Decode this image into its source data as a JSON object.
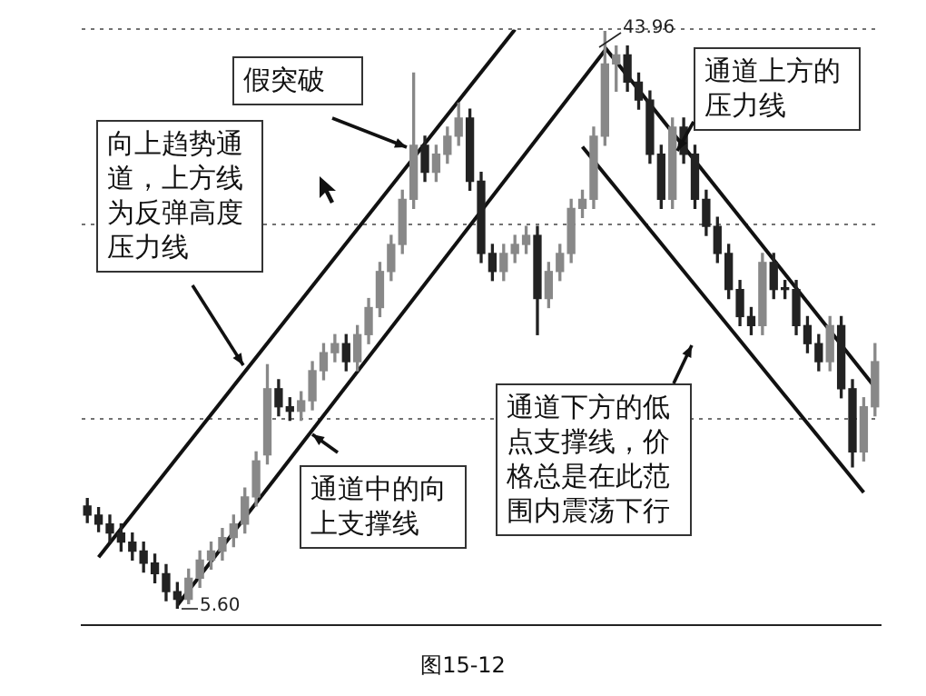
{
  "chart_data": {
    "type": "candlestick",
    "categories": [
      null,
      null,
      null,
      null,
      null,
      null,
      null,
      null,
      null,
      null,
      null,
      null,
      null,
      null,
      null,
      null,
      null,
      null,
      null,
      null,
      null,
      null,
      null,
      null,
      null,
      null,
      null,
      null,
      null,
      null,
      null,
      null,
      null,
      null,
      null,
      null,
      null,
      null,
      null,
      null,
      null,
      null,
      null,
      null,
      null,
      null,
      null,
      null,
      null,
      null,
      null,
      null,
      null,
      null,
      null,
      null,
      null,
      null,
      null,
      null,
      null,
      null,
      null,
      null,
      null,
      null,
      null,
      null,
      null,
      null,
      null
    ],
    "ylim": [
      4.5,
      44.1
    ],
    "yticks": [
      {
        "value": 18.2,
        "label": null
      },
      {
        "value": 31.1,
        "label": null
      },
      {
        "value": 44.1,
        "label": null
      }
    ],
    "grid": "y",
    "series": [
      {
        "colors": [
          "#222222",
          "#222222",
          "#222222",
          "#222222",
          "#222222",
          "#222222",
          "#222222",
          "#222222",
          "#222222",
          "#888888",
          "#888888",
          "#888888",
          "#888888",
          "#888888",
          "#888888",
          "#888888",
          "#888888",
          "#222222",
          "#222222",
          "#888888",
          "#888888",
          "#888888",
          "#888888",
          "#222222",
          "#888888",
          "#888888",
          "#888888",
          "#888888",
          "#888888",
          "#888888",
          "#222222",
          "#888888",
          "#888888",
          "#888888",
          "#222222",
          "#222222",
          "#222222",
          "#888888",
          "#888888",
          "#888888",
          "#222222",
          "#888888",
          "#888888",
          "#888888",
          "#888888",
          "#888888",
          "#888888",
          "#888888",
          "#222222",
          "#222222",
          "#222222",
          "#222222",
          "#888888",
          "#222222",
          "#222222",
          "#222222",
          "#222222",
          "#222222",
          "#222222",
          "#222222",
          "#888888",
          "#222222",
          "#222222",
          "#222222",
          "#222222",
          "#222222",
          "#888888",
          "#222222",
          "#222222",
          "#888888",
          "#888888"
        ],
        "ohlc": [
          [
            12.4,
            12.9,
            11.3,
            11.8
          ],
          [
            11.8,
            12.3,
            10.7,
            11.2
          ],
          [
            11.2,
            11.8,
            10.0,
            10.6
          ],
          [
            10.6,
            11.2,
            9.4,
            10.0
          ],
          [
            10.0,
            10.6,
            8.8,
            9.4
          ],
          [
            9.4,
            10.0,
            8.0,
            8.6
          ],
          [
            8.6,
            9.2,
            7.3,
            7.9
          ],
          [
            7.9,
            8.5,
            6.1,
            6.7
          ],
          [
            6.7,
            7.3,
            5.6,
            6.2
          ],
          [
            6.2,
            8.2,
            5.9,
            7.6
          ],
          [
            7.6,
            9.4,
            7.0,
            8.8
          ],
          [
            8.8,
            10.0,
            8.2,
            9.4
          ],
          [
            9.4,
            10.9,
            8.8,
            10.3
          ],
          [
            10.3,
            11.8,
            9.7,
            11.2
          ],
          [
            11.2,
            13.6,
            10.6,
            13.0
          ],
          [
            13.0,
            16.0,
            12.4,
            15.4
          ],
          [
            15.8,
            21.8,
            15.2,
            20.2
          ],
          [
            20.2,
            20.8,
            18.4,
            19.0
          ],
          [
            19.0,
            19.6,
            18.1,
            18.7
          ],
          [
            18.7,
            20.0,
            18.1,
            19.4
          ],
          [
            19.4,
            22.0,
            18.8,
            21.4
          ],
          [
            21.4,
            23.2,
            20.8,
            22.6
          ],
          [
            22.6,
            23.8,
            22.0,
            23.2
          ],
          [
            23.2,
            23.8,
            21.4,
            22.0
          ],
          [
            22.0,
            24.4,
            21.4,
            23.8
          ],
          [
            23.8,
            26.2,
            23.2,
            25.6
          ],
          [
            25.6,
            28.6,
            25.0,
            28.0
          ],
          [
            28.0,
            30.4,
            27.4,
            29.8
          ],
          [
            29.8,
            33.4,
            29.2,
            32.8
          ],
          [
            32.8,
            41.2,
            32.2,
            36.4
          ],
          [
            36.4,
            37.0,
            34.0,
            34.6
          ],
          [
            34.6,
            36.4,
            34.0,
            35.8
          ],
          [
            35.8,
            37.6,
            35.2,
            37.0
          ],
          [
            37.0,
            39.2,
            36.4,
            38.2
          ],
          [
            38.2,
            38.8,
            33.4,
            34.0
          ],
          [
            34.0,
            34.6,
            28.6,
            29.2
          ],
          [
            29.2,
            29.8,
            27.4,
            28.0
          ],
          [
            28.0,
            29.8,
            27.4,
            29.2
          ],
          [
            29.2,
            30.4,
            28.6,
            29.8
          ],
          [
            29.8,
            31.0,
            29.2,
            30.4
          ],
          [
            30.4,
            31.0,
            23.8,
            26.2
          ],
          [
            26.2,
            28.6,
            25.6,
            28.0
          ],
          [
            28.0,
            29.8,
            27.4,
            29.2
          ],
          [
            29.2,
            32.8,
            28.6,
            32.2
          ],
          [
            32.2,
            33.4,
            31.6,
            32.8
          ],
          [
            32.8,
            37.6,
            32.2,
            37.0
          ],
          [
            37.0,
            43.96,
            36.4,
            41.8
          ],
          [
            41.8,
            43.0,
            40.0,
            42.4
          ],
          [
            42.4,
            43.0,
            40.0,
            40.6
          ],
          [
            40.6,
            41.2,
            38.8,
            39.4
          ],
          [
            39.4,
            40.0,
            35.2,
            35.8
          ],
          [
            35.8,
            36.4,
            32.2,
            32.8
          ],
          [
            32.8,
            38.2,
            32.2,
            37.6
          ],
          [
            37.6,
            38.2,
            35.2,
            35.8
          ],
          [
            35.8,
            36.4,
            32.2,
            32.8
          ],
          [
            32.8,
            33.4,
            30.4,
            31.0
          ],
          [
            31.0,
            31.6,
            28.6,
            29.2
          ],
          [
            29.2,
            29.8,
            26.2,
            26.8
          ],
          [
            26.8,
            27.4,
            24.4,
            25.0
          ],
          [
            25.0,
            25.6,
            23.8,
            24.4
          ],
          [
            24.4,
            29.2,
            23.8,
            28.6
          ],
          [
            28.6,
            29.2,
            26.2,
            26.8
          ],
          [
            26.8,
            27.4,
            26.2,
            26.8
          ],
          [
            26.8,
            27.4,
            23.8,
            24.4
          ],
          [
            24.4,
            25.0,
            22.6,
            23.2
          ],
          [
            23.2,
            23.8,
            21.4,
            22.0
          ],
          [
            22.0,
            25.0,
            21.4,
            24.4
          ],
          [
            24.4,
            25.0,
            19.6,
            20.2
          ],
          [
            20.2,
            20.8,
            15.0,
            16.0
          ],
          [
            16.0,
            19.6,
            15.4,
            19.0
          ],
          [
            19.0,
            23.2,
            18.4,
            22.0
          ]
        ]
      },
      {
        "type": "line",
        "color": "#111111",
        "values": [
          null,
          9.0,
          null,
          null,
          null,
          null,
          null,
          null,
          null,
          null,
          null,
          null,
          null,
          null,
          null,
          null,
          null,
          null,
          null,
          null,
          null,
          null,
          null,
          null,
          null,
          null,
          null,
          null,
          null,
          null,
          null,
          null,
          null,
          null,
          null,
          null,
          null,
          null,
          44.1,
          null,
          null,
          null,
          null,
          null,
          null,
          null,
          null,
          null,
          null,
          null,
          null,
          null,
          null,
          null,
          null,
          null,
          null,
          null,
          null,
          null,
          null,
          null,
          null,
          null,
          null,
          null,
          null,
          null,
          null,
          null,
          null
        ]
      },
      {
        "type": "line",
        "color": "#111111",
        "values": [
          null,
          null,
          null,
          null,
          null,
          null,
          null,
          null,
          5.8,
          null,
          null,
          null,
          null,
          null,
          null,
          null,
          null,
          null,
          null,
          null,
          null,
          null,
          null,
          null,
          null,
          null,
          null,
          null,
          null,
          null,
          null,
          null,
          null,
          null,
          null,
          null,
          null,
          null,
          null,
          null,
          null,
          null,
          null,
          null,
          null,
          null,
          42.7,
          null,
          null,
          null,
          null,
          null,
          null,
          null,
          null,
          null,
          null,
          null,
          null,
          null,
          null,
          null,
          null,
          null,
          null,
          null,
          null,
          null,
          null,
          null,
          null
        ]
      },
      {
        "type": "line",
        "color": "#111111",
        "values": [
          null,
          null,
          null,
          null,
          null,
          null,
          null,
          null,
          null,
          null,
          null,
          null,
          null,
          null,
          null,
          null,
          null,
          null,
          null,
          null,
          null,
          null,
          null,
          null,
          null,
          null,
          null,
          null,
          null,
          null,
          null,
          null,
          null,
          null,
          null,
          null,
          null,
          null,
          null,
          null,
          null,
          null,
          null,
          null,
          null,
          null,
          42.9,
          null,
          null,
          null,
          null,
          null,
          null,
          null,
          null,
          null,
          null,
          null,
          null,
          null,
          null,
          null,
          null,
          null,
          null,
          null,
          null,
          null,
          null,
          null,
          20.3
        ]
      },
      {
        "type": "line",
        "color": "#111111",
        "values": [
          null,
          null,
          null,
          null,
          null,
          null,
          null,
          null,
          null,
          null,
          null,
          null,
          null,
          null,
          null,
          null,
          null,
          null,
          null,
          null,
          null,
          null,
          null,
          null,
          null,
          null,
          null,
          null,
          null,
          null,
          null,
          null,
          null,
          null,
          null,
          null,
          null,
          null,
          null,
          null,
          null,
          null,
          null,
          null,
          36.3,
          null,
          null,
          null,
          null,
          null,
          null,
          null,
          null,
          null,
          null,
          null,
          null,
          null,
          null,
          null,
          null,
          null,
          null,
          null,
          null,
          null,
          null,
          null,
          null,
          13.3,
          null
        ]
      }
    ],
    "annotations": [
      "假突破",
      "向上趋势通道，上方线为反弹高度压力线",
      "通道中的向上支撑线",
      "通道上方的压力线",
      "通道下方的低点支撑线，价格总是在此范围内震荡下行",
      "5.60",
      "43.96",
      "图15-12"
    ]
  }
}
